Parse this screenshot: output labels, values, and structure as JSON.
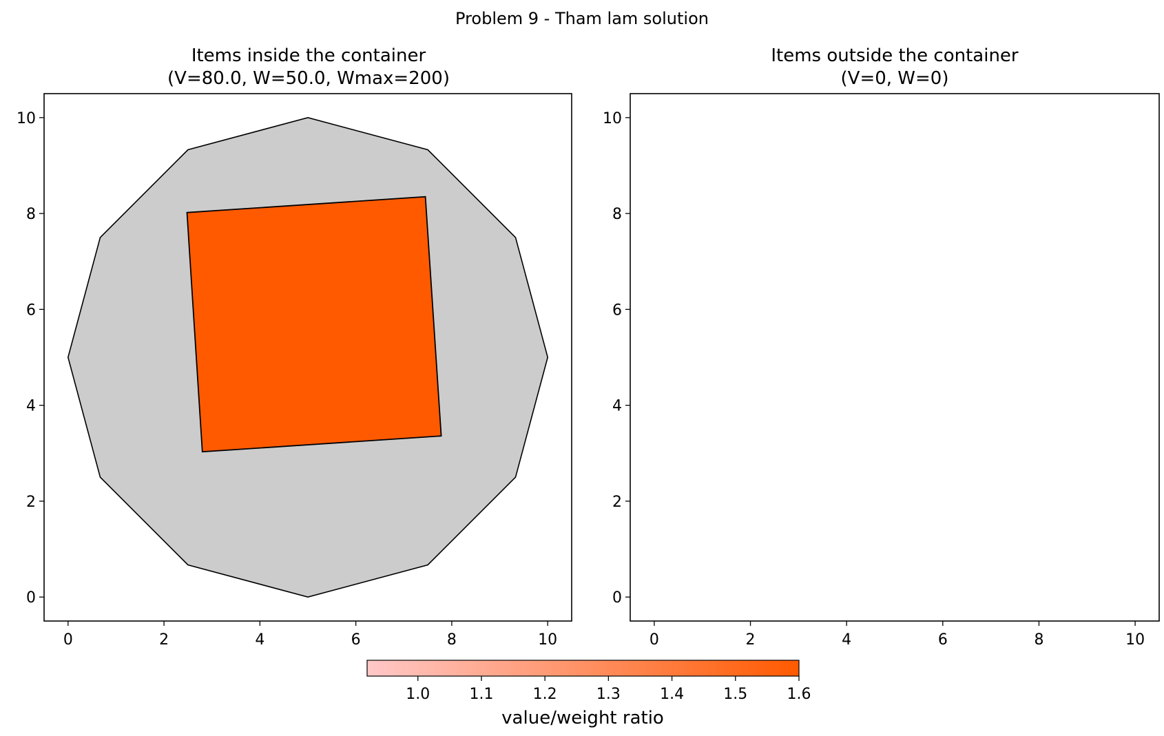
{
  "figure": {
    "title": "Problem 9 - Tham lam solution"
  },
  "chart_data": [
    {
      "type": "polygon-plot",
      "title_line1": "Items inside the container",
      "title_line2": "(V=80.0, W=50.0, Wmax=200)",
      "xlim": [
        -0.5,
        10.5
      ],
      "ylim": [
        -0.5,
        10.5
      ],
      "xticks": [
        0,
        2,
        4,
        6,
        8,
        10
      ],
      "yticks": [
        0,
        2,
        4,
        6,
        8,
        10
      ],
      "grid": false,
      "container": {
        "fill": "#cccccc",
        "points": [
          [
            10,
            5
          ],
          [
            9.33,
            7.5
          ],
          [
            7.5,
            9.33
          ],
          [
            5,
            10
          ],
          [
            2.5,
            9.33
          ],
          [
            0.67,
            7.5
          ],
          [
            0,
            5
          ],
          [
            0.67,
            2.5
          ],
          [
            2.5,
            0.67
          ],
          [
            5,
            0
          ],
          [
            7.5,
            0.67
          ],
          [
            9.33,
            2.5
          ]
        ]
      },
      "items": [
        {
          "ratio": 1.6,
          "fill": "#ff5a00",
          "points": [
            [
              2.48,
              8.02
            ],
            [
              7.45,
              8.35
            ],
            [
              7.78,
              3.36
            ],
            [
              2.8,
              3.03
            ]
          ]
        }
      ]
    },
    {
      "type": "polygon-plot",
      "title_line1": "Items outside the container",
      "title_line2": "(V=0, W=0)",
      "xlim": [
        -0.5,
        10.5
      ],
      "ylim": [
        -0.5,
        10.5
      ],
      "xticks": [
        0,
        2,
        4,
        6,
        8,
        10
      ],
      "yticks": [
        0,
        2,
        4,
        6,
        8,
        10
      ],
      "grid": false,
      "items": []
    }
  ],
  "colorbar": {
    "label": "value/weight ratio",
    "min": 0.92,
    "max": 1.6,
    "ticks": [
      1.0,
      1.1,
      1.2,
      1.3,
      1.4,
      1.5,
      1.6
    ],
    "color_low": "#ffc8c8",
    "color_high": "#ff5a00"
  }
}
